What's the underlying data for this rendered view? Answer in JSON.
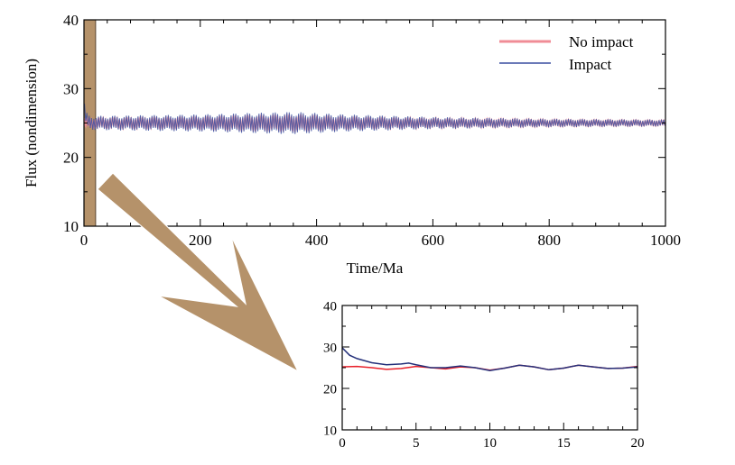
{
  "chart_data": [
    {
      "type": "line",
      "title": "",
      "xlabel": "Time/Ma",
      "ylabel": "Flux (nondimension)",
      "xlim": [
        0,
        1000
      ],
      "ylim": [
        10,
        40
      ],
      "xticks": [
        "0",
        "200",
        "400",
        "600",
        "800",
        "1000"
      ],
      "yticks": [
        "10",
        "20",
        "30",
        "40"
      ],
      "legend_position": "top-right",
      "grid": false,
      "highlight_band": {
        "x": [
          0,
          20
        ],
        "color": "#b5926a"
      },
      "series": [
        {
          "name": "No impact",
          "color": "#f08c96",
          "baseline": 25,
          "oscillation_period_ma": 4,
          "amplitude_by_time": [
            [
              0,
              0.8
            ],
            [
              100,
              0.9
            ],
            [
              200,
              1.0
            ],
            [
              300,
              1.2
            ],
            [
              360,
              1.3
            ],
            [
              450,
              1.0
            ],
            [
              600,
              0.7
            ],
            [
              800,
              0.5
            ],
            [
              1000,
              0.4
            ]
          ]
        },
        {
          "name": "Impact",
          "color": "#3a4fa0",
          "baseline": 25,
          "oscillation_period_ma": 4,
          "amplitude_by_time": [
            [
              0,
              0.8
            ],
            [
              100,
              0.9
            ],
            [
              200,
              1.0
            ],
            [
              300,
              1.2
            ],
            [
              360,
              1.3
            ],
            [
              450,
              1.0
            ],
            [
              600,
              0.7
            ],
            [
              800,
              0.5
            ],
            [
              1000,
              0.4
            ]
          ],
          "initial_peak": 27.5
        }
      ]
    },
    {
      "type": "line",
      "title": "",
      "xlabel": "",
      "ylabel": "",
      "xlim": [
        0,
        20
      ],
      "ylim": [
        10,
        40
      ],
      "xticks": [
        "0",
        "5",
        "10",
        "15",
        "20"
      ],
      "yticks": [
        "10",
        "20",
        "30",
        "40"
      ],
      "grid": false,
      "series": [
        {
          "name": "No impact",
          "color": "#e8202a",
          "x": [
            0,
            1,
            2,
            3,
            4,
            5,
            6,
            7,
            8,
            9,
            10,
            11,
            12,
            13,
            14,
            15,
            16,
            17,
            18,
            19,
            20
          ],
          "y": [
            25.2,
            25.3,
            25.0,
            24.6,
            24.8,
            25.3,
            25.0,
            24.7,
            25.2,
            25.0,
            24.4,
            24.9,
            25.6,
            25.2,
            24.5,
            24.9,
            25.6,
            25.2,
            24.8,
            24.9,
            25.3
          ]
        },
        {
          "name": "Impact",
          "color": "#24307a",
          "x": [
            0,
            0.5,
            1,
            2,
            3,
            4,
            4.5,
            5,
            6,
            7,
            8,
            9,
            10,
            11,
            12,
            13,
            14,
            15,
            16,
            17,
            18,
            19,
            20
          ],
          "y": [
            29.8,
            28.0,
            27.2,
            26.2,
            25.7,
            25.9,
            26.1,
            25.7,
            25.0,
            25.0,
            25.4,
            25.0,
            24.3,
            24.9,
            25.6,
            25.2,
            24.5,
            24.9,
            25.6,
            25.2,
            24.8,
            24.9,
            25.2
          ]
        }
      ]
    }
  ],
  "arrow": {
    "color": "#b5926a"
  }
}
